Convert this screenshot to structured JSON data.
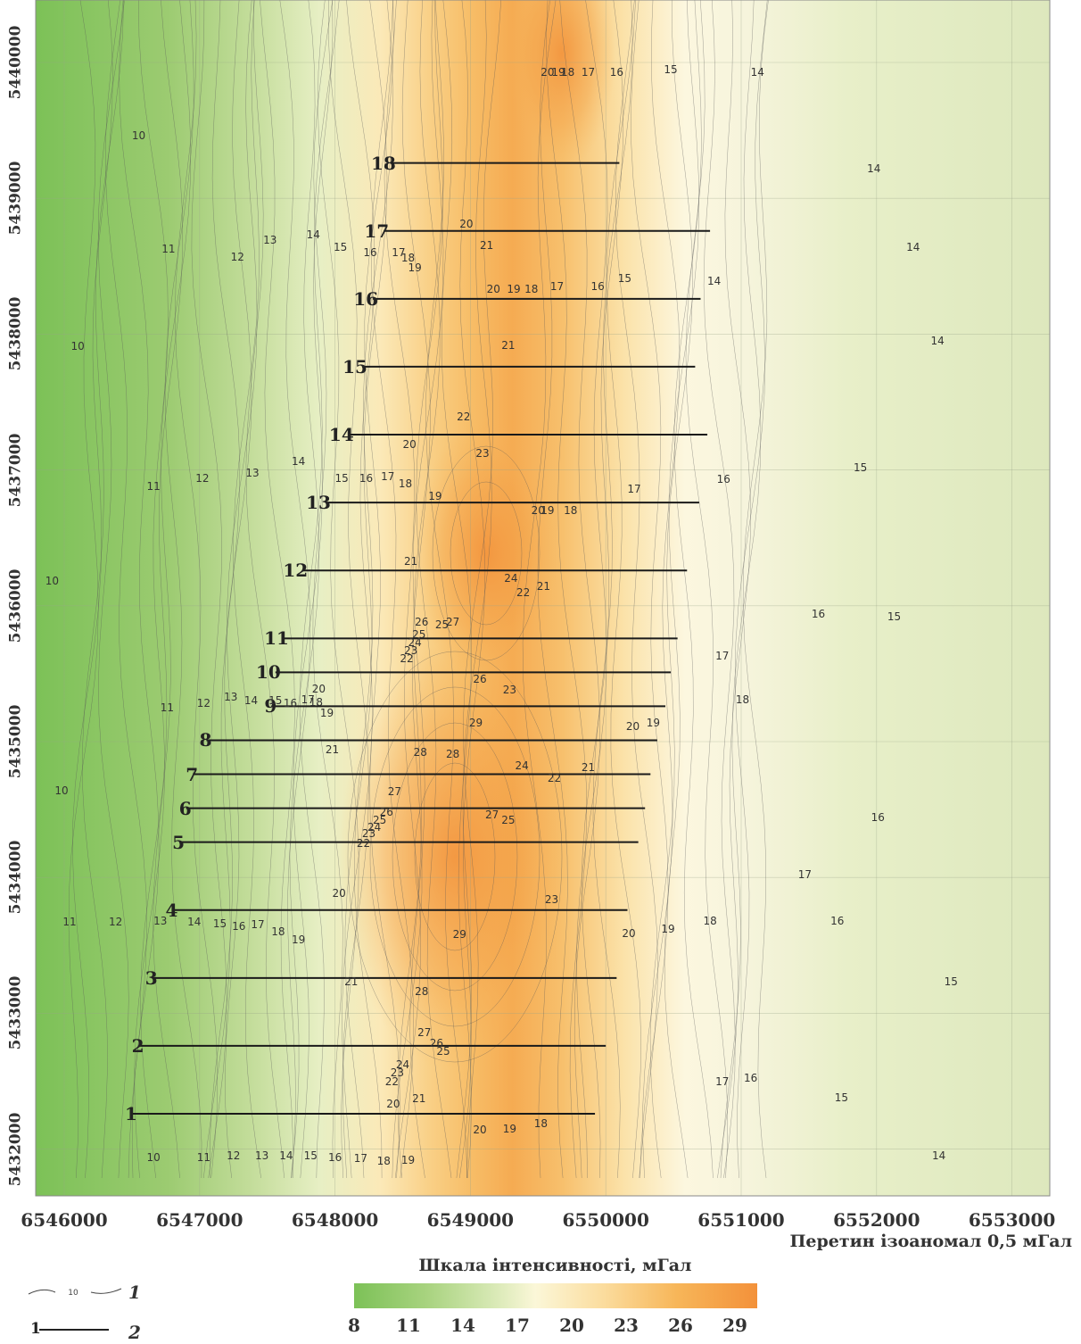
{
  "map": {
    "y_ticks": [
      "5440000",
      "5439000",
      "5438000",
      "5437000",
      "5436000",
      "5435000",
      "5434000",
      "5433000",
      "5432000"
    ],
    "x_ticks": [
      "6546000",
      "6547000",
      "6548000",
      "6549000",
      "6550000",
      "6551000",
      "6552000",
      "6553000"
    ],
    "profiles": [
      {
        "label": "1",
        "x1": 6546500,
        "x2": 6549920,
        "y": 5432260
      },
      {
        "label": "2",
        "x1": 6546550,
        "x2": 6550000,
        "y": 5432760
      },
      {
        "label": "3",
        "x1": 6546650,
        "x2": 6550080,
        "y": 5433260
      },
      {
        "label": "4",
        "x1": 6546800,
        "x2": 6550160,
        "y": 5433760
      },
      {
        "label": "5",
        "x1": 6546850,
        "x2": 6550240,
        "y": 5434260
      },
      {
        "label": "6",
        "x1": 6546900,
        "x2": 6550290,
        "y": 5434510
      },
      {
        "label": "7",
        "x1": 6546950,
        "x2": 6550330,
        "y": 5434760
      },
      {
        "label": "8",
        "x1": 6547050,
        "x2": 6550380,
        "y": 5435010
      },
      {
        "label": "9",
        "x1": 6547530,
        "x2": 6550440,
        "y": 5435260
      },
      {
        "label": "10",
        "x1": 6547560,
        "x2": 6550480,
        "y": 5435510
      },
      {
        "label": "11",
        "x1": 6547620,
        "x2": 6550530,
        "y": 5435760
      },
      {
        "label": "12",
        "x1": 6547760,
        "x2": 6550600,
        "y": 5436260
      },
      {
        "label": "13",
        "x1": 6547930,
        "x2": 6550690,
        "y": 5436760
      },
      {
        "label": "14",
        "x1": 6548100,
        "x2": 6550750,
        "y": 5437260
      },
      {
        "label": "15",
        "x1": 6548200,
        "x2": 6550660,
        "y": 5437760
      },
      {
        "label": "16",
        "x1": 6548280,
        "x2": 6550700,
        "y": 5438260
      },
      {
        "label": "17",
        "x1": 6548360,
        "x2": 6550770,
        "y": 5438760
      },
      {
        "label": "18",
        "x1": 6548410,
        "x2": 6550100,
        "y": 5439260
      }
    ],
    "contour_labels": [
      {
        "text": "20",
        "x": 6549570,
        "y": 5439930
      },
      {
        "text": "19",
        "x": 6549650,
        "y": 5439930
      },
      {
        "text": "18",
        "x": 6549720,
        "y": 5439930
      },
      {
        "text": "17",
        "x": 6549870,
        "y": 5439930
      },
      {
        "text": "16",
        "x": 6550080,
        "y": 5439930
      },
      {
        "text": "15",
        "x": 6550480,
        "y": 5439950
      },
      {
        "text": "14",
        "x": 6551120,
        "y": 5439930
      },
      {
        "text": "10",
        "x": 6546550,
        "y": 5439460
      },
      {
        "text": "14",
        "x": 6551980,
        "y": 5439220
      },
      {
        "text": "14",
        "x": 6552270,
        "y": 5438640
      },
      {
        "text": "14",
        "x": 6550800,
        "y": 5438390
      },
      {
        "text": "14",
        "x": 6552450,
        "y": 5437950
      },
      {
        "text": "11",
        "x": 6546770,
        "y": 5438630
      },
      {
        "text": "12",
        "x": 6547280,
        "y": 5438570
      },
      {
        "text": "13",
        "x": 6547520,
        "y": 5438690
      },
      {
        "text": "14",
        "x": 6547840,
        "y": 5438730
      },
      {
        "text": "15",
        "x": 6548040,
        "y": 5438640
      },
      {
        "text": "16",
        "x": 6548260,
        "y": 5438600
      },
      {
        "text": "17",
        "x": 6548470,
        "y": 5438600
      },
      {
        "text": "18",
        "x": 6548540,
        "y": 5438560
      },
      {
        "text": "19",
        "x": 6548590,
        "y": 5438490
      },
      {
        "text": "20",
        "x": 6548970,
        "y": 5438810
      },
      {
        "text": "21",
        "x": 6549120,
        "y": 5438650
      },
      {
        "text": "20",
        "x": 6549170,
        "y": 5438330
      },
      {
        "text": "19",
        "x": 6549320,
        "y": 5438330
      },
      {
        "text": "18",
        "x": 6549450,
        "y": 5438330
      },
      {
        "text": "17",
        "x": 6549640,
        "y": 5438350
      },
      {
        "text": "16",
        "x": 6549940,
        "y": 5438350
      },
      {
        "text": "15",
        "x": 6550140,
        "y": 5438410
      },
      {
        "text": "10",
        "x": 6546100,
        "y": 5437910
      },
      {
        "text": "21",
        "x": 6549280,
        "y": 5437920
      },
      {
        "text": "15",
        "x": 6551880,
        "y": 5437020
      },
      {
        "text": "22",
        "x": 6548950,
        "y": 5437390
      },
      {
        "text": "20",
        "x": 6548550,
        "y": 5437190
      },
      {
        "text": "23",
        "x": 6549090,
        "y": 5437120
      },
      {
        "text": "11",
        "x": 6546660,
        "y": 5436880
      },
      {
        "text": "12",
        "x": 6547020,
        "y": 5436940
      },
      {
        "text": "13",
        "x": 6547390,
        "y": 5436980
      },
      {
        "text": "14",
        "x": 6547730,
        "y": 5437060
      },
      {
        "text": "15",
        "x": 6548050,
        "y": 5436940
      },
      {
        "text": "16",
        "x": 6548230,
        "y": 5436940
      },
      {
        "text": "17",
        "x": 6548390,
        "y": 5436950
      },
      {
        "text": "18",
        "x": 6548520,
        "y": 5436900
      },
      {
        "text": "19",
        "x": 6548740,
        "y": 5436810
      },
      {
        "text": "20",
        "x": 6549500,
        "y": 5436700
      },
      {
        "text": "19",
        "x": 6549570,
        "y": 5436700
      },
      {
        "text": "18",
        "x": 6549740,
        "y": 5436700
      },
      {
        "text": "17",
        "x": 6550210,
        "y": 5436860
      },
      {
        "text": "16",
        "x": 6550870,
        "y": 5436930
      },
      {
        "text": "21",
        "x": 6548560,
        "y": 5436330
      },
      {
        "text": "24",
        "x": 6549300,
        "y": 5436200
      },
      {
        "text": "22",
        "x": 6549390,
        "y": 5436100
      },
      {
        "text": "21",
        "x": 6549540,
        "y": 5436140
      },
      {
        "text": "10",
        "x": 6545910,
        "y": 5436180
      },
      {
        "text": "25",
        "x": 6548790,
        "y": 5435860
      },
      {
        "text": "26",
        "x": 6548640,
        "y": 5435880
      },
      {
        "text": "27",
        "x": 6548870,
        "y": 5435880
      },
      {
        "text": "25",
        "x": 6548620,
        "y": 5435790
      },
      {
        "text": "24",
        "x": 6548590,
        "y": 5435730
      },
      {
        "text": "23",
        "x": 6548560,
        "y": 5435670
      },
      {
        "text": "22",
        "x": 6548530,
        "y": 5435610
      },
      {
        "text": "16",
        "x": 6551570,
        "y": 5435940
      },
      {
        "text": "15",
        "x": 6552130,
        "y": 5435920
      },
      {
        "text": "17",
        "x": 6550860,
        "y": 5435630
      },
      {
        "text": "26",
        "x": 6549070,
        "y": 5435460
      },
      {
        "text": "23",
        "x": 6549290,
        "y": 5435380
      },
      {
        "text": "20",
        "x": 6547880,
        "y": 5435390
      },
      {
        "text": "18",
        "x": 6551010,
        "y": 5435310
      },
      {
        "text": "11",
        "x": 6546760,
        "y": 5435250
      },
      {
        "text": "12",
        "x": 6547030,
        "y": 5435280
      },
      {
        "text": "13",
        "x": 6547230,
        "y": 5435330
      },
      {
        "text": "14",
        "x": 6547380,
        "y": 5435300
      },
      {
        "text": "15",
        "x": 6547560,
        "y": 5435300
      },
      {
        "text": "16",
        "x": 6547670,
        "y": 5435280
      },
      {
        "text": "17",
        "x": 6547800,
        "y": 5435310
      },
      {
        "text": "18",
        "x": 6547860,
        "y": 5435290
      },
      {
        "text": "19",
        "x": 6547940,
        "y": 5435210
      },
      {
        "text": "29",
        "x": 6549040,
        "y": 5435140
      },
      {
        "text": "20",
        "x": 6550200,
        "y": 5435110
      },
      {
        "text": "19",
        "x": 6550350,
        "y": 5435140
      },
      {
        "text": "21",
        "x": 6547980,
        "y": 5434940
      },
      {
        "text": "28",
        "x": 6548630,
        "y": 5434920
      },
      {
        "text": "28",
        "x": 6548870,
        "y": 5434910
      },
      {
        "text": "24",
        "x": 6549380,
        "y": 5434820
      },
      {
        "text": "22",
        "x": 6549620,
        "y": 5434730
      },
      {
        "text": "21",
        "x": 6549870,
        "y": 5434810
      },
      {
        "text": "10",
        "x": 6545980,
        "y": 5434640
      },
      {
        "text": "27",
        "x": 6548440,
        "y": 5434630
      },
      {
        "text": "26",
        "x": 6548380,
        "y": 5434480
      },
      {
        "text": "25",
        "x": 6548330,
        "y": 5434420
      },
      {
        "text": "24",
        "x": 6548290,
        "y": 5434370
      },
      {
        "text": "23",
        "x": 6548250,
        "y": 5434320
      },
      {
        "text": "22",
        "x": 6548210,
        "y": 5434250
      },
      {
        "text": "27",
        "x": 6549160,
        "y": 5434460
      },
      {
        "text": "25",
        "x": 6549280,
        "y": 5434420
      },
      {
        "text": "16",
        "x": 6552010,
        "y": 5434440
      },
      {
        "text": "17",
        "x": 6551470,
        "y": 5434020
      },
      {
        "text": "20",
        "x": 6548030,
        "y": 5433880
      },
      {
        "text": "23",
        "x": 6549600,
        "y": 5433840
      },
      {
        "text": "11",
        "x": 6546040,
        "y": 5433670
      },
      {
        "text": "12",
        "x": 6546380,
        "y": 5433670
      },
      {
        "text": "13",
        "x": 6546710,
        "y": 5433680
      },
      {
        "text": "14",
        "x": 6546960,
        "y": 5433670
      },
      {
        "text": "15",
        "x": 6547150,
        "y": 5433660
      },
      {
        "text": "16",
        "x": 6547290,
        "y": 5433640
      },
      {
        "text": "17",
        "x": 6547430,
        "y": 5433650
      },
      {
        "text": "18",
        "x": 6547580,
        "y": 5433600
      },
      {
        "text": "19",
        "x": 6547730,
        "y": 5433540
      },
      {
        "text": "29",
        "x": 6548920,
        "y": 5433580
      },
      {
        "text": "20",
        "x": 6550170,
        "y": 5433590
      },
      {
        "text": "19",
        "x": 6550460,
        "y": 5433620
      },
      {
        "text": "18",
        "x": 6550770,
        "y": 5433680
      },
      {
        "text": "16",
        "x": 6551710,
        "y": 5433680
      },
      {
        "text": "21",
        "x": 6548120,
        "y": 5433230
      },
      {
        "text": "28",
        "x": 6548640,
        "y": 5433160
      },
      {
        "text": "15",
        "x": 6552550,
        "y": 5433230
      },
      {
        "text": "27",
        "x": 6548660,
        "y": 5432860
      },
      {
        "text": "26",
        "x": 6548750,
        "y": 5432780
      },
      {
        "text": "25",
        "x": 6548800,
        "y": 5432720
      },
      {
        "text": "24",
        "x": 6548500,
        "y": 5432620
      },
      {
        "text": "23",
        "x": 6548460,
        "y": 5432560
      },
      {
        "text": "22",
        "x": 6548420,
        "y": 5432500
      },
      {
        "text": "21",
        "x": 6548620,
        "y": 5432370
      },
      {
        "text": "20",
        "x": 6548430,
        "y": 5432330
      },
      {
        "text": "17",
        "x": 6550860,
        "y": 5432500
      },
      {
        "text": "16",
        "x": 6551070,
        "y": 5432520
      },
      {
        "text": "15",
        "x": 6551740,
        "y": 5432380
      },
      {
        "text": "10",
        "x": 6546660,
        "y": 5431940
      },
      {
        "text": "11",
        "x": 6547030,
        "y": 5431940
      },
      {
        "text": "12",
        "x": 6547250,
        "y": 5431950
      },
      {
        "text": "13",
        "x": 6547460,
        "y": 5431950
      },
      {
        "text": "14",
        "x": 6547640,
        "y": 5431950
      },
      {
        "text": "15",
        "x": 6547820,
        "y": 5431950
      },
      {
        "text": "16",
        "x": 6548000,
        "y": 5431940
      },
      {
        "text": "17",
        "x": 6548190,
        "y": 5431930
      },
      {
        "text": "18",
        "x": 6548360,
        "y": 5431910
      },
      {
        "text": "19",
        "x": 6548540,
        "y": 5431920
      },
      {
        "text": "20",
        "x": 6549070,
        "y": 5432140
      },
      {
        "text": "19",
        "x": 6549290,
        "y": 5432150
      },
      {
        "text": "18",
        "x": 6549520,
        "y": 5432190
      },
      {
        "text": "14",
        "x": 6552460,
        "y": 5431950
      }
    ],
    "intersection_note": "Перетин ізоаномал 0,5 мГал"
  },
  "scale": {
    "title": "Шкала інтенсивності, мГал",
    "ticks": [
      "8",
      "11",
      "14",
      "17",
      "20",
      "23",
      "26",
      "29"
    ],
    "colors": [
      "#7cc157",
      "#fbf7d8",
      "#f3913a"
    ]
  },
  "legend": {
    "item1_number": "1",
    "item1_sample": "10",
    "item2_number": "2",
    "item2_lead": "1"
  }
}
